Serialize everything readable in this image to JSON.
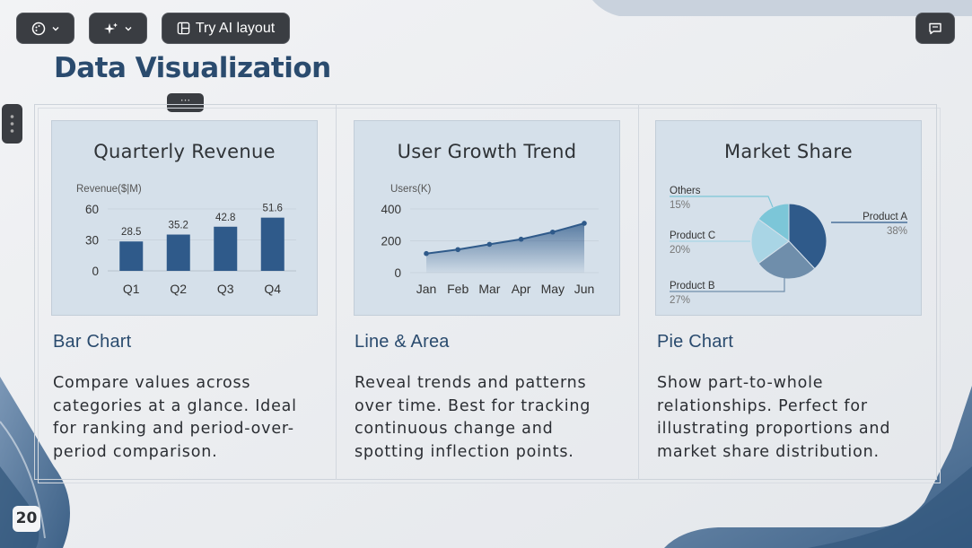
{
  "toolbar": {
    "theme_button_icon": "palette-icon",
    "ai_button_icon": "sparkle-icon",
    "try_ai_label": "Try AI layout",
    "chat_button_icon": "comment-icon"
  },
  "slide": {
    "title": "Data Visualization",
    "page_number": "20",
    "handle_dots": "···"
  },
  "columns": [
    {
      "card_title": "Quarterly Revenue",
      "heading": "Bar Chart",
      "description": "Compare values across categories at a glance. Ideal for ranking and period-over-period comparison."
    },
    {
      "card_title": "User Growth Trend",
      "heading": "Line & Area",
      "description": "Reveal trends and patterns over time. Best for tracking continuous change and spotting inflection points."
    },
    {
      "card_title": "Market Share",
      "heading": "Pie Chart",
      "description": "Show part-to-whole relationships. Perfect for illustrating proportions and market share distribution."
    }
  ],
  "chart_data": [
    {
      "type": "bar",
      "title": "Quarterly Revenue",
      "ylabel": "Revenue($|M)",
      "categories": [
        "Q1",
        "Q2",
        "Q3",
        "Q4"
      ],
      "values": [
        28.5,
        35.2,
        42.8,
        51.6
      ],
      "yticks": [
        0,
        30,
        60
      ],
      "ylim": [
        0,
        60
      ],
      "color": "#2f5a8a"
    },
    {
      "type": "area",
      "title": "User Growth Trend",
      "ylabel": "Users(K)",
      "categories": [
        "Jan",
        "Feb",
        "Mar",
        "Apr",
        "May",
        "Jun"
      ],
      "values": [
        120,
        145,
        178,
        210,
        255,
        310
      ],
      "yticks": [
        0,
        200,
        400
      ],
      "ylim": [
        0,
        400
      ],
      "color": "#2f5a8a"
    },
    {
      "type": "pie",
      "title": "Market Share",
      "slices": [
        {
          "name": "Product A",
          "value": 38,
          "label": "38%",
          "color": "#2f5a8a"
        },
        {
          "name": "Product B",
          "value": 27,
          "label": "27%",
          "color": "#6f8eab"
        },
        {
          "name": "Product C",
          "value": 20,
          "label": "20%",
          "color": "#a9d5e5"
        },
        {
          "name": "Others",
          "value": 15,
          "label": "15%",
          "color": "#7cc6d8"
        }
      ]
    }
  ]
}
